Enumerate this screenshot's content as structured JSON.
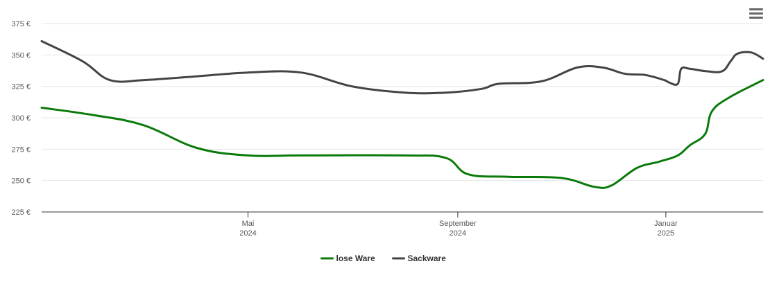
{
  "chart_data": {
    "type": "line",
    "title": "",
    "xlabel": "",
    "ylabel": "",
    "ylim": [
      225,
      375
    ],
    "y_ticks": [
      225,
      250,
      275,
      300,
      325,
      350,
      375
    ],
    "y_tick_format": "{v} €",
    "x_range": [
      "2024-01-01",
      "2025-02-27"
    ],
    "x_ticks": [
      {
        "date": "2024-05-01",
        "line1": "Mai",
        "line2": "2024"
      },
      {
        "date": "2024-09-01",
        "line1": "September",
        "line2": "2024"
      },
      {
        "date": "2025-01-01",
        "line1": "Januar",
        "line2": "2025"
      }
    ],
    "grid": true,
    "legend_position": "bottom-center",
    "series": [
      {
        "name": "lose Ware",
        "color": "#0a7a0a",
        "points": [
          [
            "2024-01-01",
            308
          ],
          [
            "2024-02-01",
            302
          ],
          [
            "2024-03-01",
            294
          ],
          [
            "2024-04-01",
            276
          ],
          [
            "2024-05-01",
            270
          ],
          [
            "2024-06-01",
            270
          ],
          [
            "2024-08-01",
            270
          ],
          [
            "2024-08-25",
            268
          ],
          [
            "2024-09-07",
            255
          ],
          [
            "2024-10-01",
            253
          ],
          [
            "2024-11-01",
            252
          ],
          [
            "2024-11-20",
            245
          ],
          [
            "2024-11-30",
            246
          ],
          [
            "2024-12-15",
            260
          ],
          [
            "2024-12-28",
            265
          ],
          [
            "2025-01-08",
            270
          ],
          [
            "2025-01-15",
            278
          ],
          [
            "2025-01-24",
            287
          ],
          [
            "2025-01-28",
            305
          ],
          [
            "2025-02-07",
            316
          ],
          [
            "2025-02-27",
            330
          ]
        ]
      },
      {
        "name": "Sackware",
        "color": "#434348",
        "points": [
          [
            "2024-01-01",
            361
          ],
          [
            "2024-01-25",
            345
          ],
          [
            "2024-02-10",
            330
          ],
          [
            "2024-03-01",
            330
          ],
          [
            "2024-04-01",
            333
          ],
          [
            "2024-05-01",
            336
          ],
          [
            "2024-06-01",
            336
          ],
          [
            "2024-07-01",
            325
          ],
          [
            "2024-08-01",
            320
          ],
          [
            "2024-08-25",
            320
          ],
          [
            "2024-09-15",
            323
          ],
          [
            "2024-09-25",
            327
          ],
          [
            "2024-10-20",
            329
          ],
          [
            "2024-11-10",
            340
          ],
          [
            "2024-11-25",
            340
          ],
          [
            "2024-12-08",
            335
          ],
          [
            "2024-12-20",
            334
          ],
          [
            "2024-12-31",
            330
          ],
          [
            "2025-01-03",
            328
          ],
          [
            "2025-01-08",
            327
          ],
          [
            "2025-01-10",
            339
          ],
          [
            "2025-01-15",
            339
          ],
          [
            "2025-01-25",
            337
          ],
          [
            "2025-02-03",
            337
          ],
          [
            "2025-02-08",
            345
          ],
          [
            "2025-02-12",
            351
          ],
          [
            "2025-02-20",
            352
          ],
          [
            "2025-02-27",
            347
          ]
        ]
      }
    ]
  }
}
